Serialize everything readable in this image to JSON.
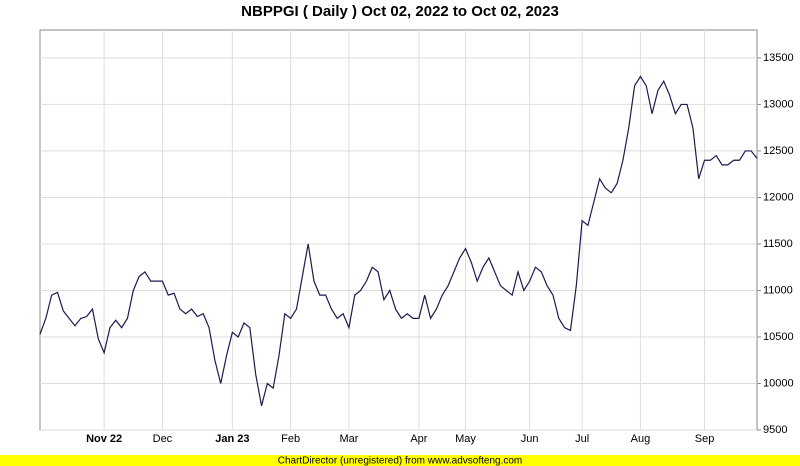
{
  "chart_data": {
    "type": "line",
    "title": "NBPPGI ( Daily ) Oct 02, 2022 to Oct 02, 2023",
    "categories": [
      null,
      null,
      null,
      null,
      null,
      null,
      null,
      null,
      null,
      null,
      null,
      "Nov 22",
      null,
      null,
      null,
      null,
      null,
      null,
      null,
      null,
      null,
      "Dec",
      null,
      null,
      null,
      null,
      null,
      null,
      null,
      null,
      null,
      null,
      null,
      "Jan 23",
      null,
      null,
      null,
      null,
      null,
      null,
      null,
      null,
      null,
      "Feb",
      null,
      null,
      null,
      null,
      null,
      null,
      null,
      null,
      null,
      "Mar",
      null,
      null,
      null,
      null,
      null,
      null,
      null,
      null,
      null,
      null,
      null,
      "Apr",
      null,
      null,
      null,
      null,
      null,
      null,
      null,
      "May",
      null,
      null,
      null,
      null,
      null,
      null,
      null,
      null,
      null,
      null,
      "Jun",
      null,
      null,
      null,
      null,
      null,
      null,
      null,
      null,
      "Jul",
      null,
      null,
      null,
      null,
      null,
      null,
      null,
      null,
      null,
      "Aug",
      null,
      null,
      null,
      null,
      null,
      null,
      null,
      null,
      null,
      null,
      "Sep",
      null,
      null,
      null,
      null,
      null,
      null,
      null,
      null,
      null
    ],
    "series": [
      {
        "color": "#1a1a4e",
        "values": [
          10530,
          10700,
          10950,
          10980,
          10780,
          10700,
          10620,
          10700,
          10720,
          10800,
          10480,
          10330,
          10600,
          10680,
          10600,
          10700,
          11000,
          11150,
          11200,
          11100,
          11100,
          11100,
          10950,
          10970,
          10800,
          10750,
          10800,
          10720,
          10750,
          10600,
          10250,
          10000,
          10300,
          10550,
          10500,
          10650,
          10600,
          10100,
          9760,
          10000,
          9950,
          10300,
          10750,
          10700,
          10800,
          11150,
          11500,
          11100,
          10950,
          10950,
          10800,
          10700,
          10750,
          10600,
          10950,
          11000,
          11100,
          11250,
          11200,
          10900,
          11000,
          10800,
          10700,
          10750,
          10700,
          10700,
          10950,
          10700,
          10800,
          10950,
          11050,
          11200,
          11350,
          11450,
          11300,
          11100,
          11250,
          11350,
          11200,
          11050,
          11000,
          10950,
          11200,
          11000,
          11100,
          11250,
          11200,
          11050,
          10950,
          10700,
          10600,
          10570,
          11050,
          11750,
          11700,
          11950,
          12200,
          12100,
          12050,
          12150,
          12400,
          12750,
          13200,
          13300,
          13200,
          12900,
          13150,
          13250,
          13100,
          12900,
          13000,
          13000,
          12750,
          12200,
          12400,
          12400,
          12450,
          12350,
          12350,
          12400,
          12400,
          12500,
          12500,
          12420
        ]
      }
    ],
    "ylim": [
      9500,
      13800
    ],
    "yticks": [
      9500,
      10000,
      10500,
      11000,
      11500,
      12000,
      12500,
      13000,
      13500
    ],
    "grid": true
  },
  "footer": "ChartDirector (unregistered) from www.advsofteng.com"
}
